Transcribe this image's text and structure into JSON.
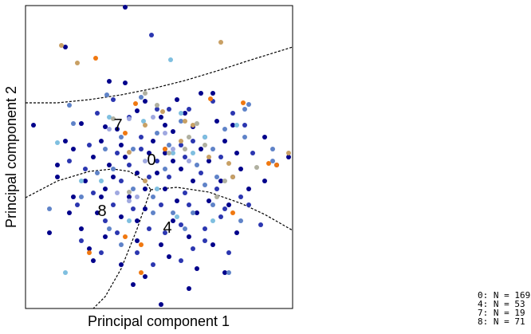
{
  "chart_data": {
    "type": "scatter",
    "xlabel": "Principal component 1",
    "ylabel": "Principal component 2",
    "xlim": [
      0,
      335
    ],
    "ylim": [
      0,
      380
    ],
    "grid": false,
    "legend_placement": "bottom-right",
    "region_labels": [
      "0",
      "4",
      "7",
      "8"
    ],
    "legend_lines": [
      "0: N = 169",
      "4: N = 53",
      "7: N = 19",
      "8: N = 71"
    ],
    "decision_boundaries": [
      {
        "name": "upper",
        "x": [
          0,
          40,
          80,
          120,
          160,
          200,
          240,
          280,
          335
        ],
        "y": [
          258,
          258,
          262,
          268,
          276,
          286,
          298,
          311,
          328
        ]
      },
      {
        "name": "lower-left",
        "x": [
          0,
          40,
          80,
          110,
          130,
          150,
          157
        ],
        "y": [
          139,
          160,
          172,
          175,
          172,
          160,
          149
        ]
      },
      {
        "name": "lower-right",
        "x": [
          157,
          190,
          230,
          270,
          300,
          335
        ],
        "y": [
          149,
          152,
          146,
          132,
          118,
          98
        ]
      },
      {
        "name": "diagonal",
        "x": [
          157,
          140,
          120,
          100,
          85
        ],
        "y": [
          149,
          100,
          50,
          15,
          0
        ]
      }
    ],
    "series": [
      {
        "color": "#00008b",
        "points": [
          [
            125,
            378
          ],
          [
            50,
            328
          ],
          [
            105,
            285
          ],
          [
            125,
            283
          ],
          [
            190,
            262
          ],
          [
            220,
            270
          ],
          [
            150,
            260
          ],
          [
            140,
            248
          ],
          [
            100,
            228
          ],
          [
            70,
            232
          ],
          [
            115,
            225
          ],
          [
            170,
            240
          ],
          [
            185,
            222
          ],
          [
            210,
            228
          ],
          [
            240,
            235
          ],
          [
            95,
            210
          ],
          [
            120,
            205
          ],
          [
            160,
            210
          ],
          [
            175,
            195
          ],
          [
            220,
            200
          ],
          [
            250,
            210
          ],
          [
            60,
            200
          ],
          [
            40,
            180
          ],
          [
            85,
            190
          ],
          [
            105,
            180
          ],
          [
            140,
            170
          ],
          [
            195,
            175
          ],
          [
            230,
            185
          ],
          [
            265,
            195
          ],
          [
            300,
            215
          ],
          [
            75,
            160
          ],
          [
            100,
            150
          ],
          [
            130,
            140
          ],
          [
            175,
            150
          ],
          [
            210,
            160
          ],
          [
            245,
            160
          ],
          [
            280,
            150
          ],
          [
            60,
            140
          ],
          [
            90,
            120
          ],
          [
            120,
            115
          ],
          [
            150,
            125
          ],
          [
            185,
            110
          ],
          [
            215,
            120
          ],
          [
            255,
            130
          ],
          [
            30,
            95
          ],
          [
            70,
            100
          ],
          [
            100,
            90
          ],
          [
            140,
            85
          ],
          [
            170,
            80
          ],
          [
            205,
            90
          ],
          [
            235,
            80
          ],
          [
            265,
            95
          ],
          [
            85,
            60
          ],
          [
            120,
            55
          ],
          [
            150,
            40
          ],
          [
            180,
            65
          ],
          [
            215,
            50
          ],
          [
            250,
            45
          ],
          [
            205,
            25
          ],
          [
            170,
            5
          ],
          [
            135,
            30
          ],
          [
            315,
            180
          ],
          [
            330,
            190
          ],
          [
            10,
            230
          ],
          [
            50,
            210
          ],
          [
            155,
            195
          ],
          [
            200,
            245
          ],
          [
            110,
            165
          ],
          [
            165,
            170
          ],
          [
            230,
            135
          ],
          [
            140,
            110
          ],
          [
            190,
            135
          ],
          [
            270,
            175
          ],
          [
            55,
            120
          ],
          [
            95,
            140
          ],
          [
            300,
            160
          ],
          [
            40,
            165
          ],
          [
            175,
            230
          ],
          [
            125,
            190
          ],
          [
            260,
            230
          ],
          [
            235,
            270
          ],
          [
            185,
            185
          ],
          [
            150,
            150
          ],
          [
            80,
            75
          ]
        ]
      },
      {
        "color": "#2b36b0",
        "points": [
          [
            158,
            343
          ],
          [
            235,
            260
          ],
          [
            110,
            262
          ],
          [
            165,
            250
          ],
          [
            205,
            250
          ],
          [
            90,
            245
          ],
          [
            130,
            240
          ],
          [
            180,
            250
          ],
          [
            260,
            245
          ],
          [
            275,
            230
          ],
          [
            225,
            215
          ],
          [
            195,
            205
          ],
          [
            145,
            200
          ],
          [
            115,
            195
          ],
          [
            80,
            205
          ],
          [
            55,
            185
          ],
          [
            130,
            180
          ],
          [
            165,
            185
          ],
          [
            245,
            190
          ],
          [
            285,
            195
          ],
          [
            75,
            175
          ],
          [
            180,
            165
          ],
          [
            220,
            170
          ],
          [
            260,
            165
          ],
          [
            120,
            160
          ],
          [
            155,
            165
          ],
          [
            200,
            145
          ],
          [
            240,
            150
          ],
          [
            270,
            140
          ],
          [
            65,
            130
          ],
          [
            110,
            130
          ],
          [
            135,
            125
          ],
          [
            170,
            130
          ],
          [
            205,
            130
          ],
          [
            245,
            115
          ],
          [
            280,
            130
          ],
          [
            100,
            110
          ],
          [
            155,
            100
          ],
          [
            195,
            105
          ],
          [
            225,
            100
          ],
          [
            295,
            105
          ],
          [
            115,
            95
          ],
          [
            175,
            95
          ],
          [
            210,
            75
          ],
          [
            70,
            85
          ],
          [
            140,
            70
          ],
          [
            255,
            70
          ],
          [
            195,
            60
          ],
          [
            95,
            70
          ],
          [
            160,
            55
          ],
          [
            225,
            85
          ],
          [
            200,
            190
          ],
          [
            145,
            215
          ],
          [
            175,
            200
          ],
          [
            85,
            145
          ],
          [
            250,
            125
          ],
          [
            210,
            210
          ]
        ]
      },
      {
        "color": "#5f83c8",
        "points": [
          [
            280,
            256
          ],
          [
            102,
            268
          ],
          [
            55,
            255
          ],
          [
            145,
            265
          ],
          [
            60,
            232
          ],
          [
            120,
            215
          ],
          [
            165,
            220
          ],
          [
            195,
            235
          ],
          [
            250,
            225
          ],
          [
            135,
            200
          ],
          [
            100,
            200
          ],
          [
            180,
            205
          ],
          [
            235,
            200
          ],
          [
            275,
            215
          ],
          [
            110,
            175
          ],
          [
            175,
            175
          ],
          [
            215,
            180
          ],
          [
            135,
            150
          ],
          [
            225,
            155
          ],
          [
            185,
            120
          ],
          [
            270,
            110
          ],
          [
            105,
            100
          ],
          [
            160,
            140
          ],
          [
            235,
            130
          ],
          [
            200,
            100
          ],
          [
            120,
            80
          ],
          [
            255,
            45
          ],
          [
            70,
            140
          ],
          [
            240,
            165
          ],
          [
            310,
            200
          ],
          [
            310,
            185
          ],
          [
            30,
            125
          ],
          [
            90,
            170
          ],
          [
            210,
            120
          ],
          [
            160,
            120
          ],
          [
            275,
            250
          ]
        ]
      },
      {
        "color": "#7fbfe0",
        "points": [
          [
            182,
            312
          ],
          [
            105,
            240
          ],
          [
            148,
            235
          ],
          [
            195,
            245
          ],
          [
            40,
            208
          ],
          [
            210,
            195
          ],
          [
            225,
            215
          ],
          [
            265,
            230
          ],
          [
            95,
            160
          ],
          [
            165,
            150
          ],
          [
            130,
            110
          ],
          [
            190,
            115
          ],
          [
            50,
            45
          ],
          [
            70,
            160
          ],
          [
            235,
            110
          ],
          [
            185,
            195
          ]
        ]
      },
      {
        "color": "#9fa8e0",
        "points": [
          [
            130,
            238
          ],
          [
            160,
            240
          ],
          [
            175,
            220
          ],
          [
            185,
            200
          ],
          [
            115,
            145
          ],
          [
            130,
            135
          ],
          [
            140,
            140
          ],
          [
            105,
            225
          ],
          [
            205,
            185
          ],
          [
            150,
            185
          ]
        ]
      },
      {
        "color": "#c8a064",
        "points": [
          [
            45,
            330
          ],
          [
            245,
            334
          ],
          [
            65,
            308
          ],
          [
            150,
            230
          ],
          [
            172,
            247
          ],
          [
            200,
            235
          ],
          [
            210,
            230
          ],
          [
            130,
            196
          ],
          [
            195,
            210
          ],
          [
            230,
            190
          ],
          [
            255,
            182
          ],
          [
            260,
            165
          ],
          [
            330,
            195
          ],
          [
            150,
            160
          ]
        ]
      },
      {
        "color": "#f07810",
        "points": [
          [
            88,
            314
          ],
          [
            138,
            257
          ],
          [
            232,
            263
          ],
          [
            273,
            258
          ],
          [
            125,
            220
          ],
          [
            175,
            200
          ],
          [
            315,
            180
          ],
          [
            305,
            182
          ],
          [
            125,
            90
          ],
          [
            80,
            70
          ],
          [
            145,
            80
          ],
          [
            145,
            45
          ],
          [
            260,
            120
          ]
        ]
      },
      {
        "color": "#b0b0a0",
        "points": [
          [
            150,
            270
          ],
          [
            110,
            238
          ],
          [
            215,
            232
          ],
          [
            180,
            195
          ],
          [
            200,
            200
          ],
          [
            225,
            205
          ],
          [
            165,
            255
          ],
          [
            205,
            215
          ],
          [
            250,
            160
          ],
          [
            290,
            177
          ],
          [
            240,
            140
          ],
          [
            130,
            146
          ]
        ]
      }
    ]
  }
}
